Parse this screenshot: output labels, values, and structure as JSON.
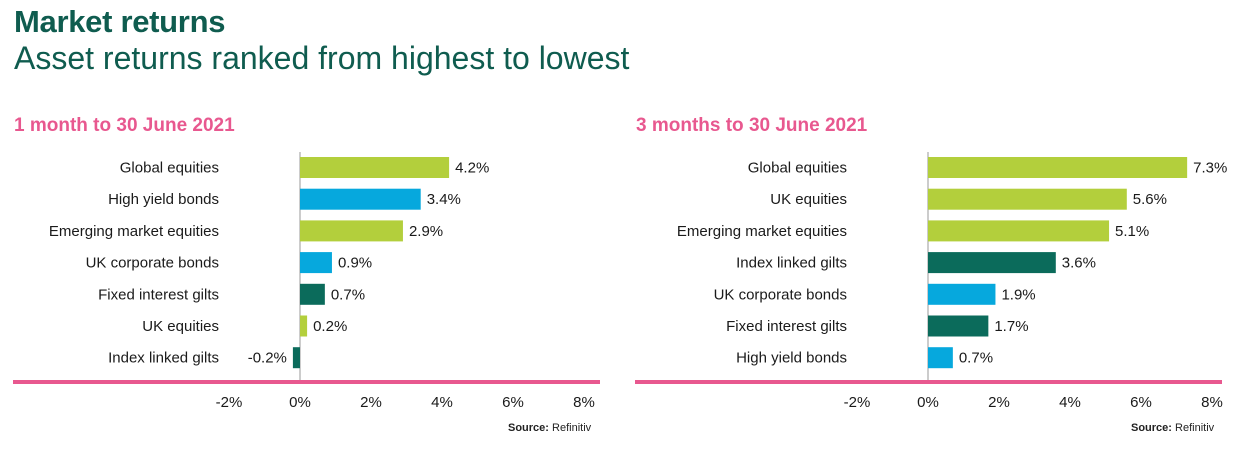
{
  "header": {
    "title": "Market returns",
    "subtitle": "Asset returns ranked from highest to lowest"
  },
  "colors": {
    "lime": "#b3cf3c",
    "blue": "#06a8dd",
    "teal": "#0b6b5b",
    "axis": "#e8588f",
    "title": "#0f5c4f",
    "panel_title": "#e8588f"
  },
  "source": {
    "label": "Source:",
    "value": "Refinitiv"
  },
  "chart_data": [
    {
      "type": "bar",
      "orientation": "horizontal",
      "title": "1 month to 30 June 2021",
      "xlim": [
        -2,
        8
      ],
      "xticks": [
        "-2%",
        "0%",
        "2%",
        "4%",
        "6%",
        "8%"
      ],
      "xtick_values": [
        -2,
        0,
        2,
        4,
        6,
        8
      ],
      "categories": [
        "Global equities",
        "High yield bonds",
        "Emerging market equities",
        "UK corporate bonds",
        "Fixed interest gilts",
        "UK equities",
        "Index linked gilts"
      ],
      "values": [
        4.2,
        3.4,
        2.9,
        0.9,
        0.7,
        0.2,
        -0.2
      ],
      "labels": [
        "4.2%",
        "3.4%",
        "2.9%",
        "0.9%",
        "0.7%",
        "0.2%",
        "-0.2%"
      ],
      "bar_colors": [
        "lime",
        "blue",
        "lime",
        "blue",
        "teal",
        "lime",
        "teal"
      ]
    },
    {
      "type": "bar",
      "orientation": "horizontal",
      "title": "3 months to 30 June 2021",
      "xlim": [
        -2,
        8
      ],
      "xticks": [
        "-2%",
        "0%",
        "2%",
        "4%",
        "6%",
        "8%"
      ],
      "xtick_values": [
        -2,
        0,
        2,
        4,
        6,
        8
      ],
      "categories": [
        "Global equities",
        "UK equities",
        "Emerging market equities",
        "Index linked gilts",
        "UK corporate bonds",
        "Fixed interest gilts",
        "High yield bonds"
      ],
      "values": [
        7.3,
        5.6,
        5.1,
        3.6,
        1.9,
        1.7,
        0.7
      ],
      "labels": [
        "7.3%",
        "5.6%",
        "5.1%",
        "3.6%",
        "1.9%",
        "1.7%",
        "0.7%"
      ],
      "bar_colors": [
        "lime",
        "lime",
        "lime",
        "teal",
        "blue",
        "teal",
        "blue"
      ]
    }
  ]
}
